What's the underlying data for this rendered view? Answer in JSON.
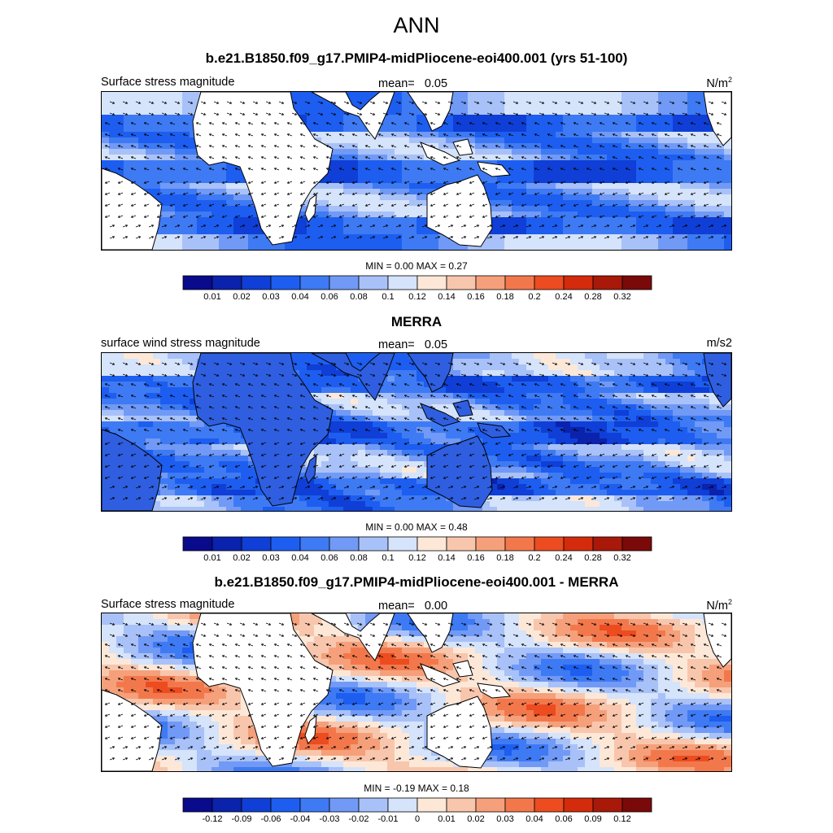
{
  "page_title": "ANN",
  "panels": [
    {
      "title": "b.e21.B1850.f09_g17.PMIP4-midPliocene-eoi400.001 (yrs 51-100)",
      "variable": "Surface stress magnitude",
      "mean_label": "mean=",
      "mean_value": "0.05",
      "units_base": "N/m",
      "units_sup": "2",
      "minmax": "MIN =   0.00 MAX =   0.27",
      "kind": "model"
    },
    {
      "title": "MERRA",
      "variable": "surface wind stress magnitude",
      "mean_label": "mean=",
      "mean_value": "0.05",
      "units_base": "m/s2",
      "units_sup": "",
      "minmax": "MIN =   0.00 MAX =   0.48",
      "kind": "obs"
    },
    {
      "title": "b.e21.B1850.f09_g17.PMIP4-midPliocene-eoi400.001 - MERRA",
      "variable": "Surface stress magnitude",
      "mean_label": "mean=",
      "mean_value": "0.00",
      "units_base": "N/m",
      "units_sup": "2",
      "minmax": "MIN =  -0.19 MAX =   0.18",
      "kind": "diff"
    }
  ],
  "colorbars": {
    "magnitude": {
      "colors": [
        "#0a0a8c",
        "#0b22ad",
        "#0f3fd6",
        "#1d5ef0",
        "#3e7af3",
        "#7199f6",
        "#a8c1f8",
        "#d5e3fb",
        "#fde8d8",
        "#f8c6ac",
        "#f5a07a",
        "#f2784c",
        "#ec4c20",
        "#d42b0c",
        "#a8190a",
        "#7a0a0a"
      ],
      "ticks": [
        "0.01",
        "0.02",
        "0.03",
        "0.04",
        "0.06",
        "0.08",
        "0.1",
        "0.12",
        "0.14",
        "0.16",
        "0.18",
        "0.2",
        "0.24",
        "0.28",
        "0.32"
      ]
    },
    "difference": {
      "colors": [
        "#0a0a8c",
        "#0b22ad",
        "#0f3fd6",
        "#1d5ef0",
        "#3e7af3",
        "#7199f6",
        "#a8c1f8",
        "#d5e3fb",
        "#fde8d8",
        "#f8c6ac",
        "#f5a07a",
        "#f2784c",
        "#ec4c20",
        "#d42b0c",
        "#a8190a",
        "#7a0a0a"
      ],
      "ticks": [
        "-0.12",
        "-0.09",
        "-0.06",
        "-0.04",
        "-0.03",
        "-0.02",
        "-0.01",
        "0",
        "0.01",
        "0.02",
        "0.03",
        "0.04",
        "0.06",
        "0.09",
        "0.12"
      ]
    }
  },
  "map_extent": {
    "lon": [
      0,
      360
    ],
    "lat": [
      -40,
      40
    ]
  }
}
